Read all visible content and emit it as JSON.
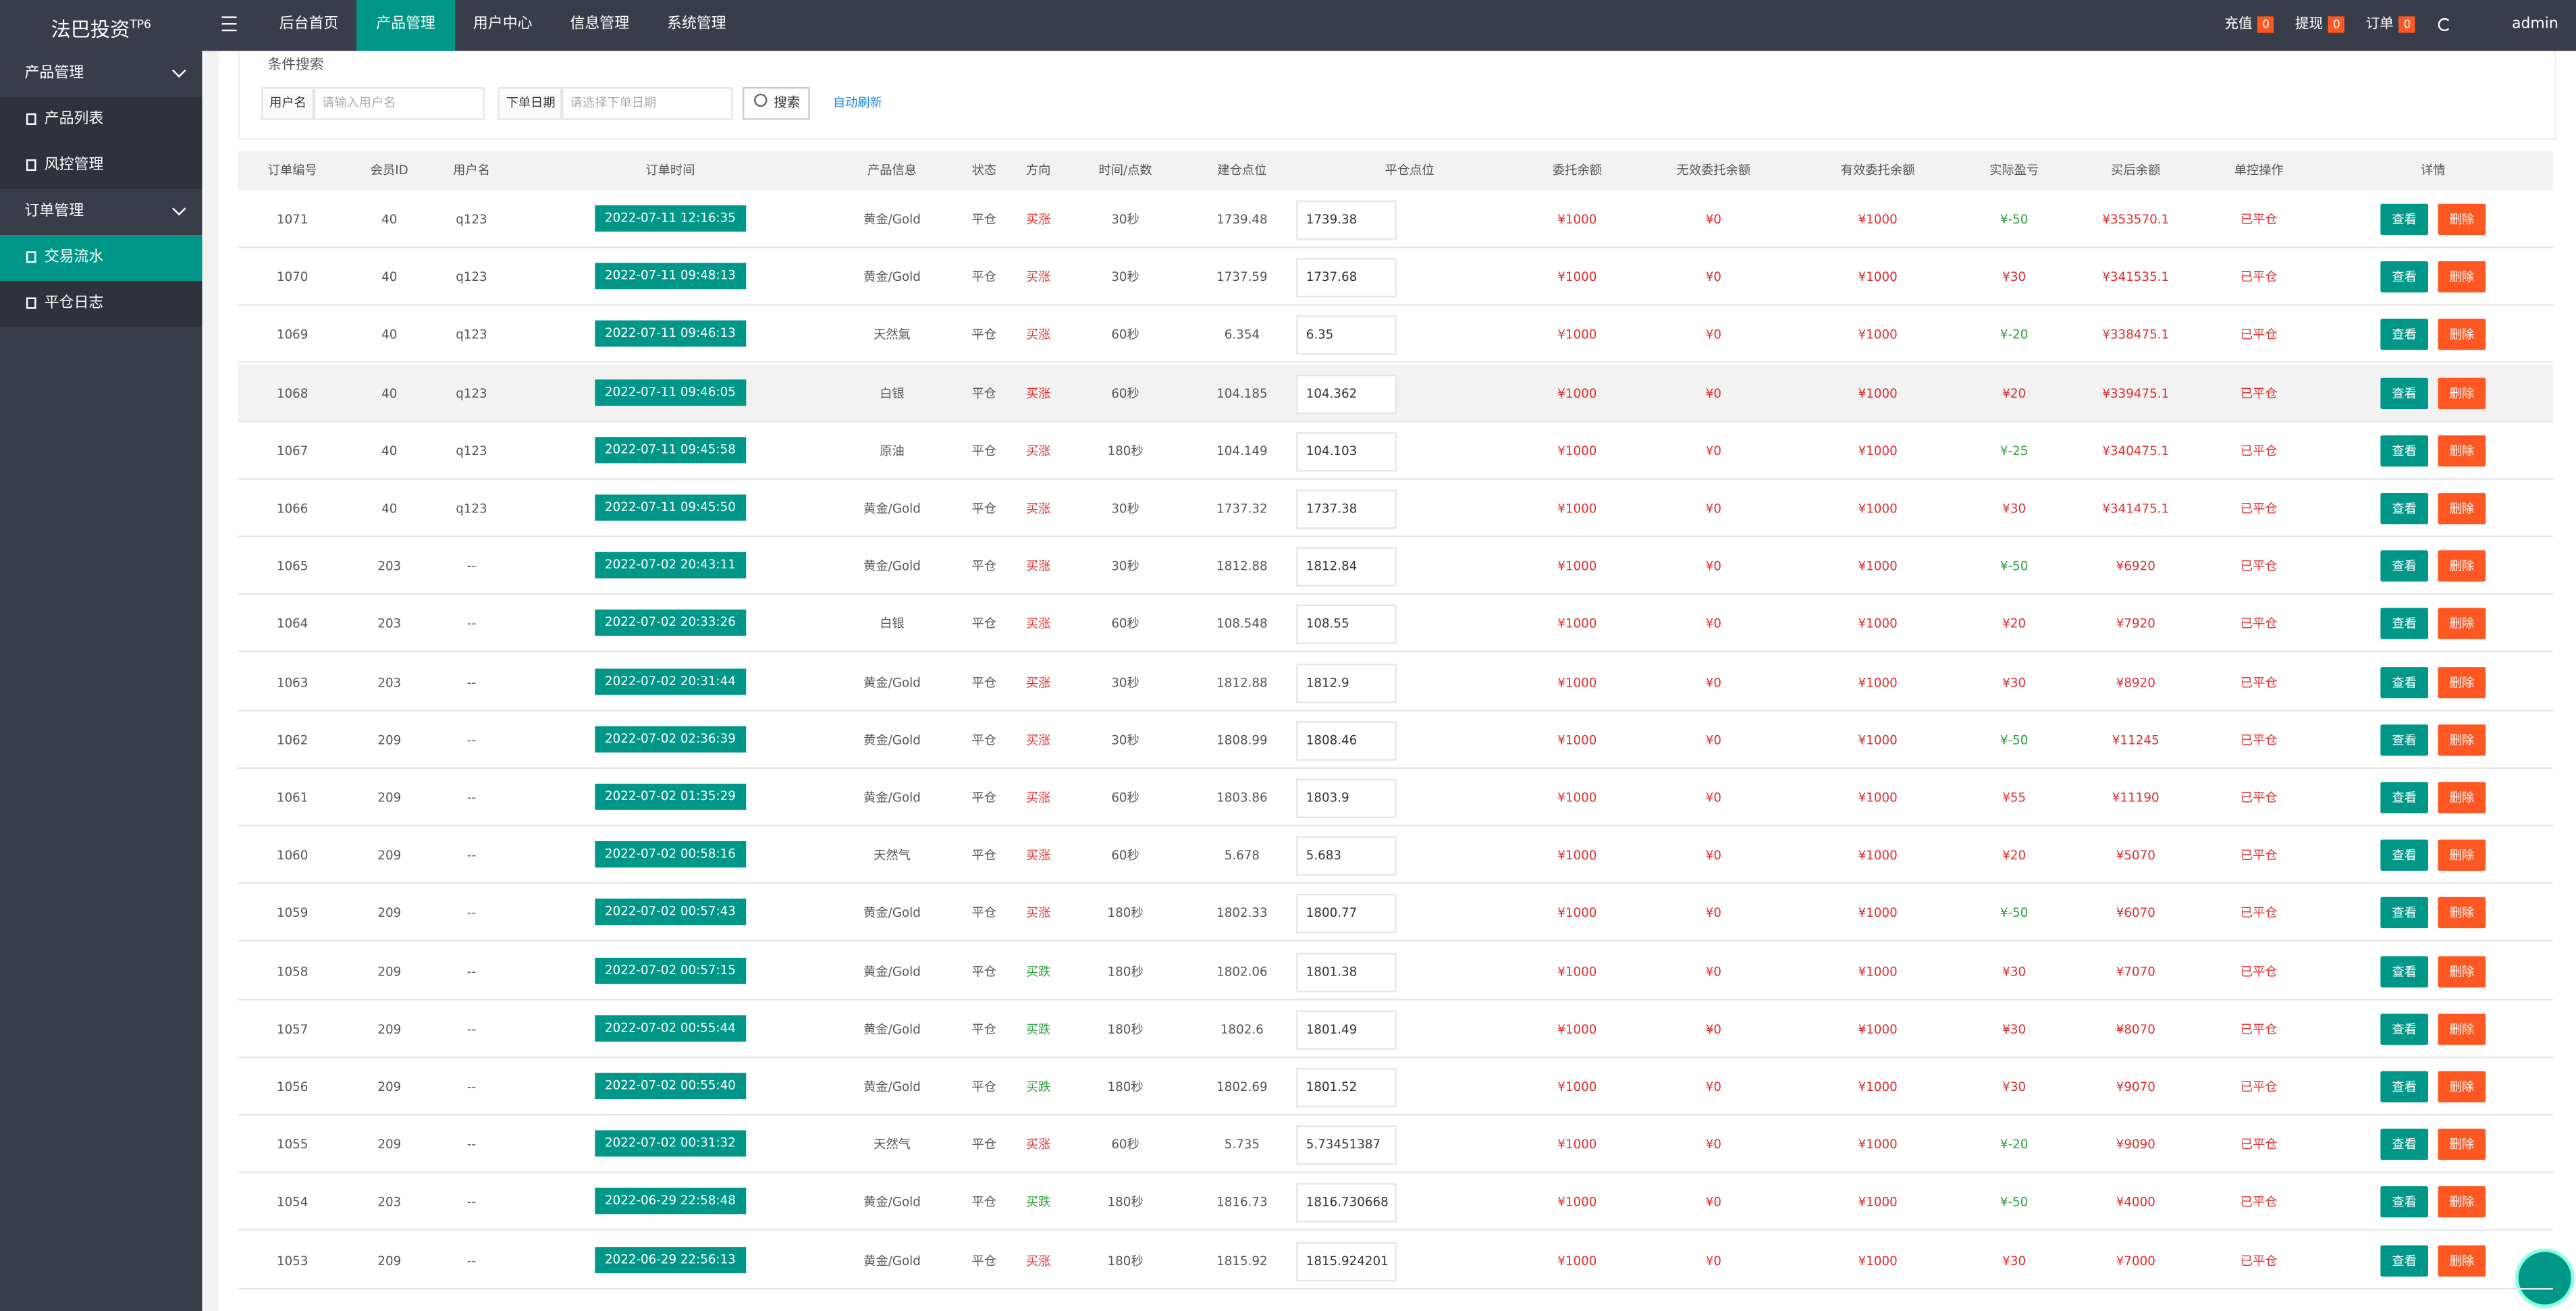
{
  "header": {
    "logo": "法巴投资",
    "logo_sup": "TP6",
    "nav": [
      "后台首页",
      "产品管理",
      "用户中心",
      "信息管理",
      "系统管理"
    ],
    "active_nav": 1,
    "right": [
      {
        "label": "充值",
        "badge": "0"
      },
      {
        "label": "提现",
        "badge": "0"
      },
      {
        "label": "订单",
        "badge": "0"
      }
    ],
    "user": "admin"
  },
  "sidebar": [
    {
      "label": "产品管理",
      "group": true
    },
    {
      "label": "产品列表"
    },
    {
      "label": "风控管理"
    },
    {
      "label": "订单管理",
      "group": true
    },
    {
      "label": "交易流水",
      "active": true
    },
    {
      "label": "平仓日志"
    }
  ],
  "search": {
    "title": "条件搜索",
    "fields": [
      {
        "label": "用户名",
        "placeholder": "请输入用户名"
      },
      {
        "label": "下单日期",
        "placeholder": "请选择下单日期"
      }
    ],
    "button": "搜索",
    "auto_refresh": "自动刷新"
  },
  "table": {
    "headers": [
      "订单编号",
      "会员ID",
      "用户名",
      "订单时间",
      "产品信息",
      "状态",
      "方向",
      "时间/点数",
      "建仓点位",
      "平仓点位",
      "委托余额",
      "无效委托余额",
      "有效委托余额",
      "实际盈亏",
      "买后余额",
      "单控操作",
      "详情"
    ],
    "actions": [
      "查看",
      "删除"
    ],
    "direction_colors": {
      "买涨": "#e02d2d",
      "买跌": "#2e9e3e"
    },
    "profit_colors": {
      "positive": "#e02d2d",
      "negative": "#2e9e3e"
    },
    "rows": [
      [
        "1071",
        "40",
        "q123",
        "2022-07-11 12:16:35",
        "黄金/Gold",
        "平仓",
        "买涨",
        "30秒",
        "1739.48",
        "1739.38",
        "¥1000",
        "¥0",
        "¥1000",
        "¥-50",
        "¥353570.1",
        "已平仓"
      ],
      [
        "1070",
        "40",
        "q123",
        "2022-07-11 09:48:13",
        "黄金/Gold",
        "平仓",
        "买涨",
        "30秒",
        "1737.59",
        "1737.68",
        "¥1000",
        "¥0",
        "¥1000",
        "¥30",
        "¥341535.1",
        "已平仓"
      ],
      [
        "1069",
        "40",
        "q123",
        "2022-07-11 09:46:13",
        "天然氣",
        "平仓",
        "买涨",
        "60秒",
        "6.354",
        "6.35",
        "¥1000",
        "¥0",
        "¥1000",
        "¥-20",
        "¥338475.1",
        "已平仓"
      ],
      [
        "1068",
        "40",
        "q123",
        "2022-07-11 09:46:05",
        "白银",
        "平仓",
        "买涨",
        "60秒",
        "104.185",
        "104.362",
        "¥1000",
        "¥0",
        "¥1000",
        "¥20",
        "¥339475.1",
        "已平仓"
      ],
      [
        "1067",
        "40",
        "q123",
        "2022-07-11 09:45:58",
        "原油",
        "平仓",
        "买涨",
        "180秒",
        "104.149",
        "104.103",
        "¥1000",
        "¥0",
        "¥1000",
        "¥-25",
        "¥340475.1",
        "已平仓"
      ],
      [
        "1066",
        "40",
        "q123",
        "2022-07-11 09:45:50",
        "黄金/Gold",
        "平仓",
        "买涨",
        "30秒",
        "1737.32",
        "1737.38",
        "¥1000",
        "¥0",
        "¥1000",
        "¥30",
        "¥341475.1",
        "已平仓"
      ],
      [
        "1065",
        "203",
        "--",
        "2022-07-02 20:43:11",
        "黄金/Gold",
        "平仓",
        "买涨",
        "30秒",
        "1812.88",
        "1812.84",
        "¥1000",
        "¥0",
        "¥1000",
        "¥-50",
        "¥6920",
        "已平仓"
      ],
      [
        "1064",
        "203",
        "--",
        "2022-07-02 20:33:26",
        "白银",
        "平仓",
        "买涨",
        "60秒",
        "108.548",
        "108.55",
        "¥1000",
        "¥0",
        "¥1000",
        "¥20",
        "¥7920",
        "已平仓"
      ],
      [
        "1063",
        "203",
        "--",
        "2022-07-02 20:31:44",
        "黄金/Gold",
        "平仓",
        "买涨",
        "30秒",
        "1812.88",
        "1812.9",
        "¥1000",
        "¥0",
        "¥1000",
        "¥30",
        "¥8920",
        "已平仓"
      ],
      [
        "1062",
        "209",
        "--",
        "2022-07-02 02:36:39",
        "黄金/Gold",
        "平仓",
        "买涨",
        "30秒",
        "1808.99",
        "1808.46",
        "¥1000",
        "¥0",
        "¥1000",
        "¥-50",
        "¥11245",
        "已平仓"
      ],
      [
        "1061",
        "209",
        "--",
        "2022-07-02 01:35:29",
        "黄金/Gold",
        "平仓",
        "买涨",
        "60秒",
        "1803.86",
        "1803.9",
        "¥1000",
        "¥0",
        "¥1000",
        "¥55",
        "¥11190",
        "已平仓"
      ],
      [
        "1060",
        "209",
        "--",
        "2022-07-02 00:58:16",
        "天然气",
        "平仓",
        "买涨",
        "60秒",
        "5.678",
        "5.683",
        "¥1000",
        "¥0",
        "¥1000",
        "¥20",
        "¥5070",
        "已平仓"
      ],
      [
        "1059",
        "209",
        "--",
        "2022-07-02 00:57:43",
        "黄金/Gold",
        "平仓",
        "买涨",
        "180秒",
        "1802.33",
        "1800.77",
        "¥1000",
        "¥0",
        "¥1000",
        "¥-50",
        "¥6070",
        "已平仓"
      ],
      [
        "1058",
        "209",
        "--",
        "2022-07-02 00:57:15",
        "黄金/Gold",
        "平仓",
        "买跌",
        "180秒",
        "1802.06",
        "1801.38",
        "¥1000",
        "¥0",
        "¥1000",
        "¥30",
        "¥7070",
        "已平仓"
      ],
      [
        "1057",
        "209",
        "--",
        "2022-07-02 00:55:44",
        "黄金/Gold",
        "平仓",
        "买跌",
        "180秒",
        "1802.6",
        "1801.49",
        "¥1000",
        "¥0",
        "¥1000",
        "¥30",
        "¥8070",
        "已平仓"
      ],
      [
        "1056",
        "209",
        "--",
        "2022-07-02 00:55:40",
        "黄金/Gold",
        "平仓",
        "买跌",
        "180秒",
        "1802.69",
        "1801.52",
        "¥1000",
        "¥0",
        "¥1000",
        "¥30",
        "¥9070",
        "已平仓"
      ],
      [
        "1055",
        "209",
        "--",
        "2022-07-02 00:31:32",
        "天然气",
        "平仓",
        "买涨",
        "60秒",
        "5.735",
        "5.73451387",
        "¥1000",
        "¥0",
        "¥1000",
        "¥-20",
        "¥9090",
        "已平仓"
      ],
      [
        "1054",
        "203",
        "--",
        "2022-06-29 22:58:48",
        "黄金/Gold",
        "平仓",
        "买跌",
        "180秒",
        "1816.73",
        "1816.730668",
        "¥1000",
        "¥0",
        "¥1000",
        "¥-50",
        "¥4000",
        "已平仓"
      ],
      [
        "1053",
        "209",
        "--",
        "2022-06-29 22:56:13",
        "黄金/Gold",
        "平仓",
        "买涨",
        "180秒",
        "1815.92",
        "1815.924201",
        "¥1000",
        "¥0",
        "¥1000",
        "¥30",
        "¥7000",
        "已平仓"
      ]
    ]
  }
}
